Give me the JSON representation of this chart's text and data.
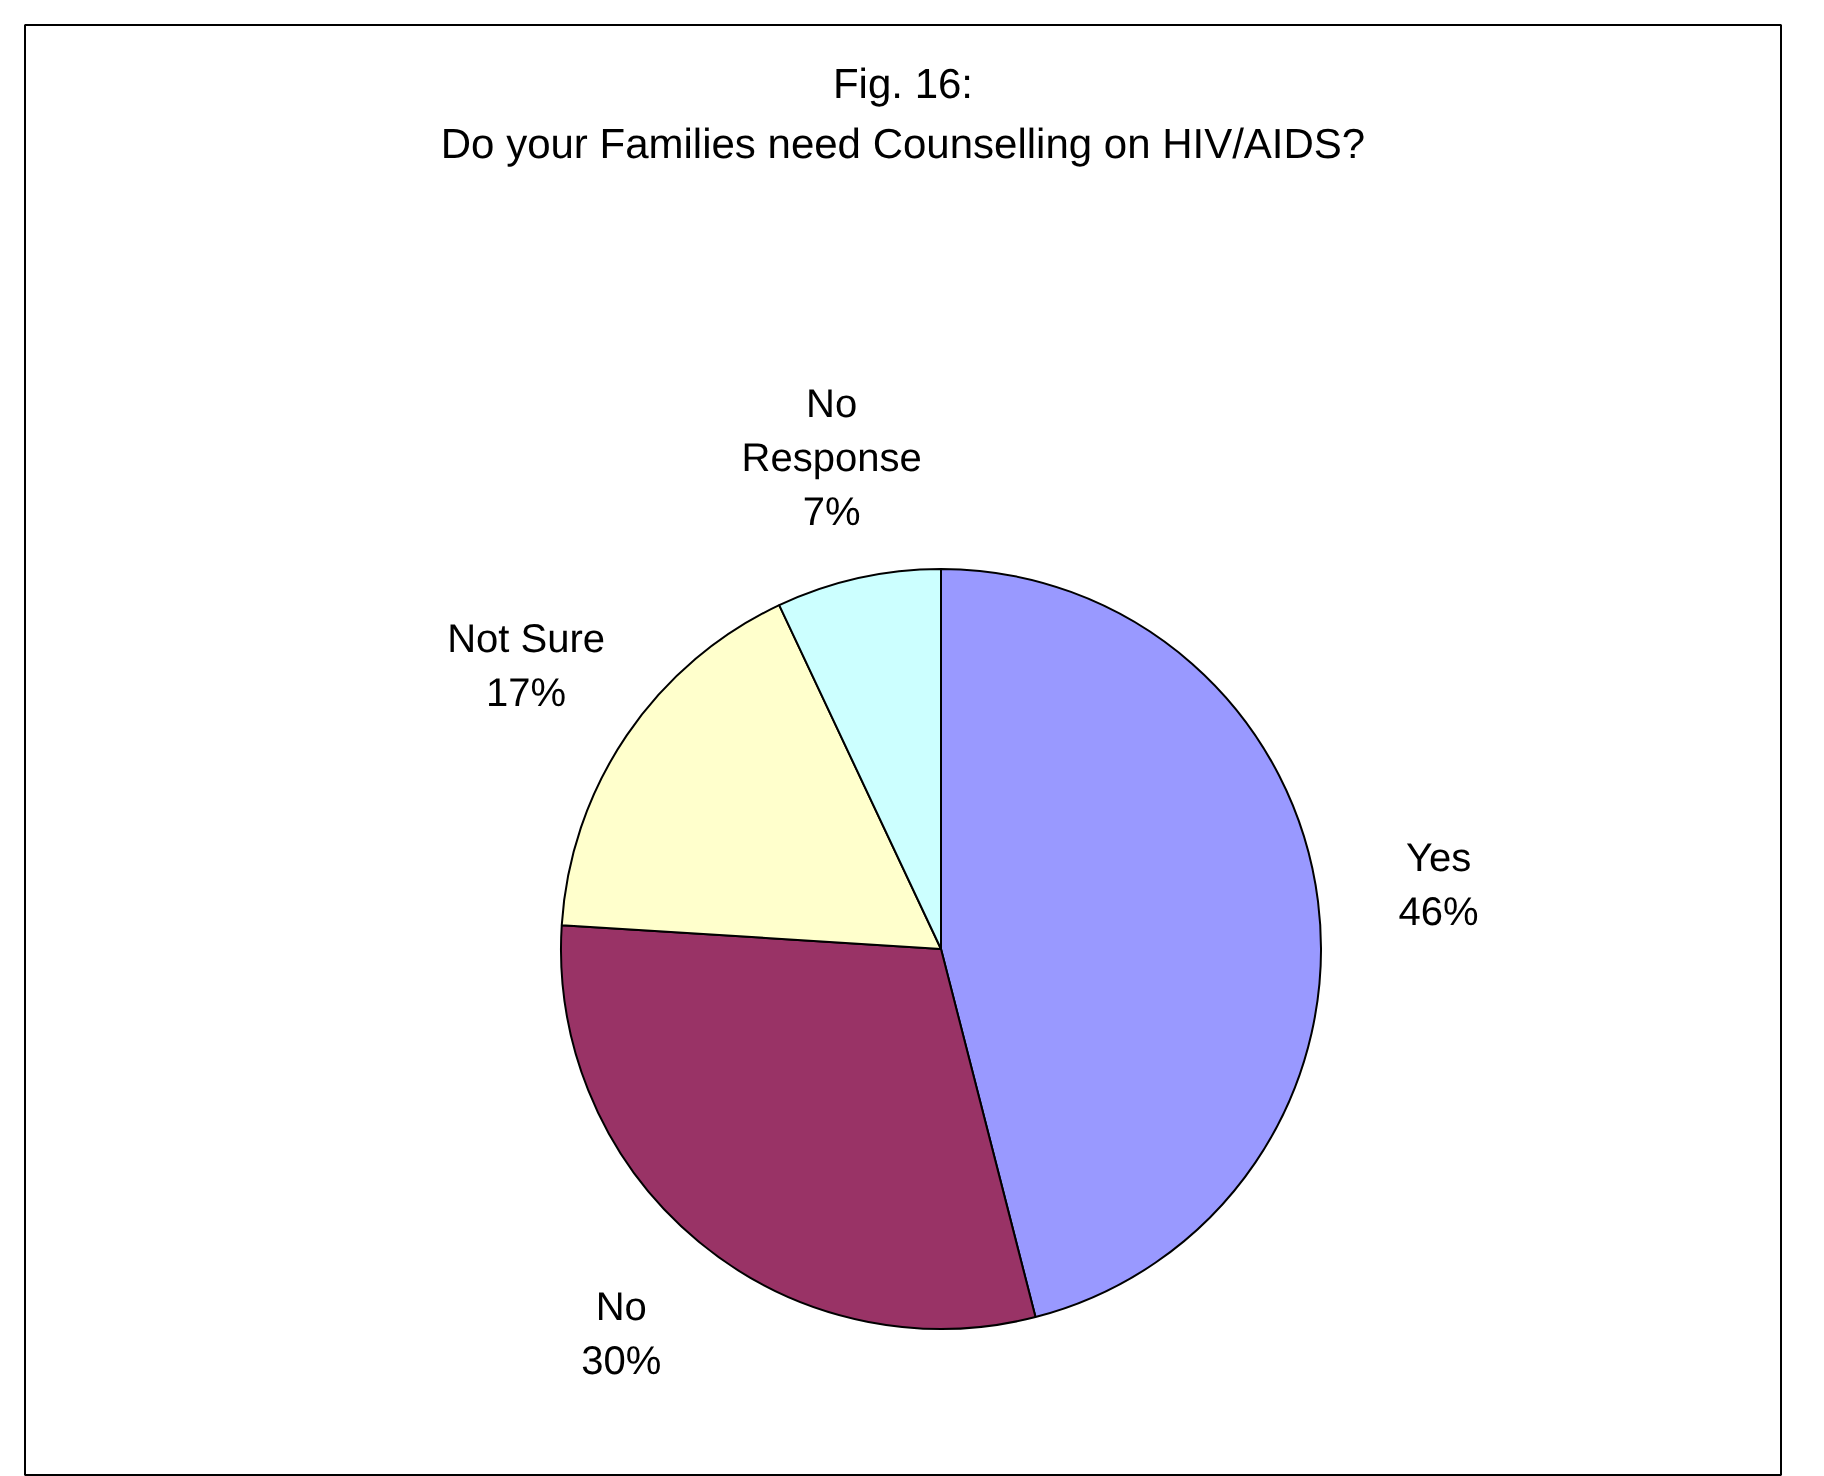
{
  "chart_data": {
    "type": "pie",
    "title": "Fig. 16:\nDo your Families need Counselling on HIV/AIDS?",
    "categories": [
      "Yes",
      "No",
      "Not Sure",
      "No Response"
    ],
    "values": [
      46,
      30,
      17,
      7
    ],
    "colors": [
      "#9999ff",
      "#993366",
      "#ffffcc",
      "#ccffff"
    ],
    "value_labels": [
      "46%",
      "30%",
      "17%",
      "7%"
    ]
  }
}
